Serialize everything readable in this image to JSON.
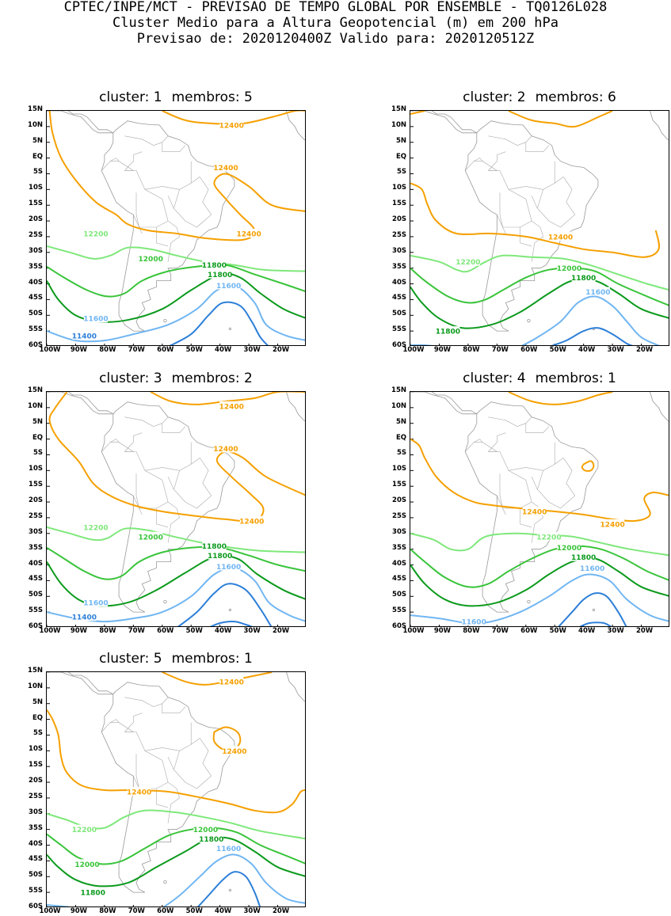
{
  "header": {
    "line1": "CPTEC/INPE/MCT - PREVISAO DE TEMPO GLOBAL POR ENSEMBLE - TQ0126L028",
    "line2": "Cluster Medio para a Altura Geopotencial (m) em 200 hPa",
    "line3": "Previsao de: 2020120400Z   Valido para: 2020120512Z"
  },
  "axes": {
    "lat_labels": [
      "15N",
      "10N",
      "5N",
      "EQ",
      "5S",
      "10S",
      "15S",
      "20S",
      "25S",
      "30S",
      "35S",
      "40S",
      "45S",
      "50S",
      "55S",
      "60S"
    ],
    "lon_labels": [
      "100W",
      "90W",
      "80W",
      "70W",
      "60W",
      "50W",
      "40W",
      "30W",
      "20W"
    ]
  },
  "contour_colors": {
    "12400": "#f5a000",
    "12200": "#7ee87a",
    "12000": "#39c43a",
    "11800": "#0b9a1c",
    "11600": "#71b6f2",
    "11400": "#2c7fd8"
  },
  "panels": [
    {
      "cluster_label": "cluster: 1",
      "members_label": "membros: 5",
      "labels": [
        "12400",
        "12400",
        "12400",
        "12200",
        "12000",
        "11800",
        "11800",
        "11600",
        "11600",
        "11400"
      ]
    },
    {
      "cluster_label": "cluster: 2",
      "members_label": "membros: 6",
      "labels": [
        "12400",
        "12200",
        "12000",
        "11800",
        "11800",
        "11600"
      ]
    },
    {
      "cluster_label": "cluster: 3",
      "members_label": "membros: 2",
      "labels": [
        "12400",
        "12400",
        "12400",
        "12200",
        "12000",
        "11800",
        "11800",
        "11600",
        "11600",
        "11400"
      ]
    },
    {
      "cluster_label": "cluster: 4",
      "members_label": "membros: 1",
      "labels": [
        "12400",
        "12400",
        "12200",
        "12000",
        "11800",
        "11600",
        "11600"
      ]
    },
    {
      "cluster_label": "cluster: 5",
      "members_label": "membros: 1",
      "labels": [
        "12400",
        "12400",
        "12400",
        "12200",
        "12000",
        "12000",
        "11800",
        "11800",
        "11600"
      ]
    }
  ]
}
